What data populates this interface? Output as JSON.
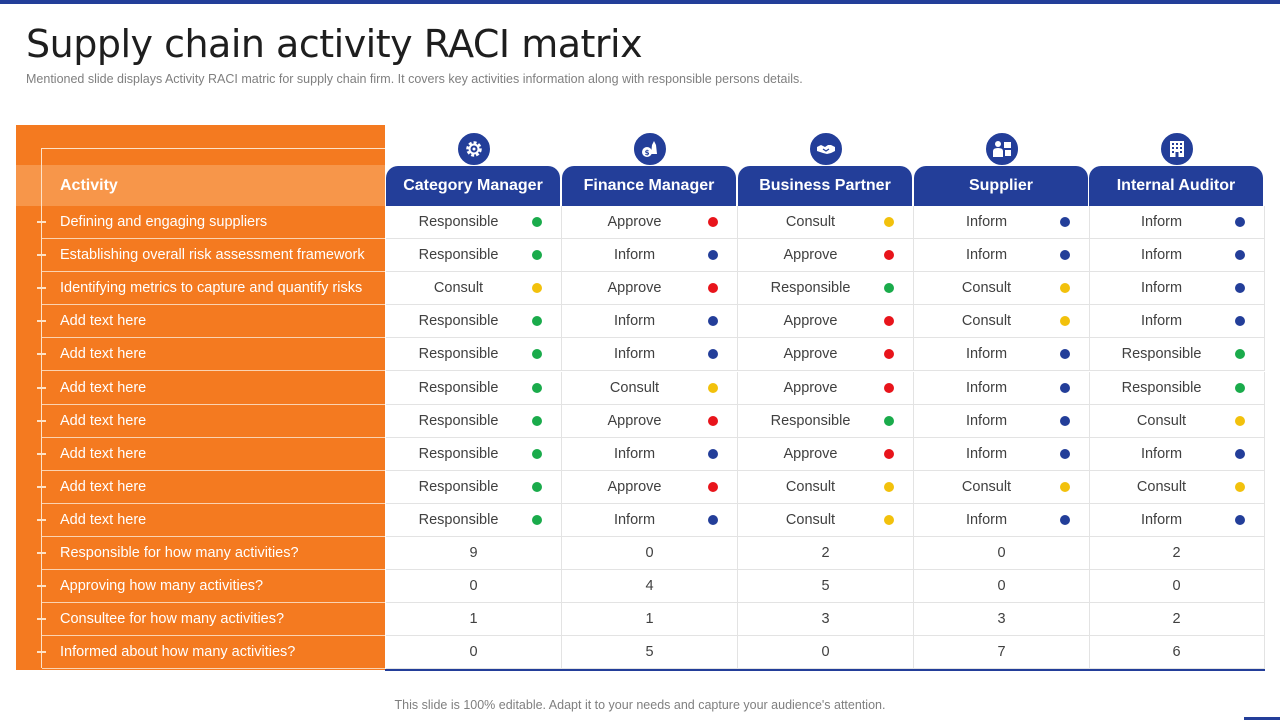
{
  "title": "Supply chain activity RACI matrix",
  "subtitle": "Mentioned slide displays Activity RACI matric for supply chain firm. It covers key activities information  along with responsible  persons details.",
  "footer": "This slide is 100% editable. Adapt it to your needs and capture your audience's attention.",
  "activity_header": "Activity",
  "colors": {
    "Responsible": "#1aab4b",
    "Approve": "#e8141b",
    "Consult": "#f2c10c",
    "Inform": "#233e99"
  },
  "columns": [
    {
      "label": "Category Manager",
      "icon": "gear-icon"
    },
    {
      "label": "Finance Manager",
      "icon": "money-bag-icon"
    },
    {
      "label": "Business Partner",
      "icon": "handshake-icon"
    },
    {
      "label": "Supplier",
      "icon": "supplier-person-icon"
    },
    {
      "label": "Internal Auditor",
      "icon": "building-icon"
    }
  ],
  "rows": [
    {
      "label": "Defining and engaging suppliers",
      "cells": [
        "Responsible",
        "Approve",
        "Consult",
        "Inform",
        "Inform"
      ]
    },
    {
      "label": "Establishing overall risk assessment framework",
      "cells": [
        "Responsible",
        "Inform",
        "Approve",
        "Inform",
        "Inform"
      ]
    },
    {
      "label": "Identifying metrics to capture and quantify risks",
      "cells": [
        "Consult",
        "Approve",
        "Responsible",
        "Consult",
        "Inform"
      ]
    },
    {
      "label": "Add text here",
      "cells": [
        "Responsible",
        "Inform",
        "Approve",
        "Consult",
        "Inform"
      ]
    },
    {
      "label": "Add text here",
      "cells": [
        "Responsible",
        "Inform",
        "Approve",
        "Inform",
        "Responsible"
      ]
    },
    {
      "label": "Add text here",
      "cells": [
        "Responsible",
        "Consult",
        "Approve",
        "Inform",
        "Responsible"
      ]
    },
    {
      "label": "Add text here",
      "cells": [
        "Responsible",
        "Approve",
        "Responsible",
        "Inform",
        "Consult"
      ]
    },
    {
      "label": "Add text here",
      "cells": [
        "Responsible",
        "Inform",
        "Approve",
        "Inform",
        "Inform"
      ]
    },
    {
      "label": "Add text here",
      "cells": [
        "Responsible",
        "Approve",
        "Consult",
        "Consult",
        "Consult"
      ]
    },
    {
      "label": "Add text here",
      "cells": [
        "Responsible",
        "Inform",
        "Consult",
        "Inform",
        "Inform"
      ]
    }
  ],
  "summary_rows": [
    {
      "label": "Responsible for how many activities?",
      "values": [
        "9",
        "0",
        "2",
        "0",
        "2"
      ]
    },
    {
      "label": "Approving how many activities?",
      "values": [
        "0",
        "4",
        "5",
        "0",
        "0"
      ]
    },
    {
      "label": "Consultee for how many activities?",
      "values": [
        "1",
        "1",
        "3",
        "3",
        "2"
      ]
    },
    {
      "label": "Informed about how many activities?",
      "values": [
        "0",
        "5",
        "0",
        "7",
        "6"
      ]
    }
  ]
}
